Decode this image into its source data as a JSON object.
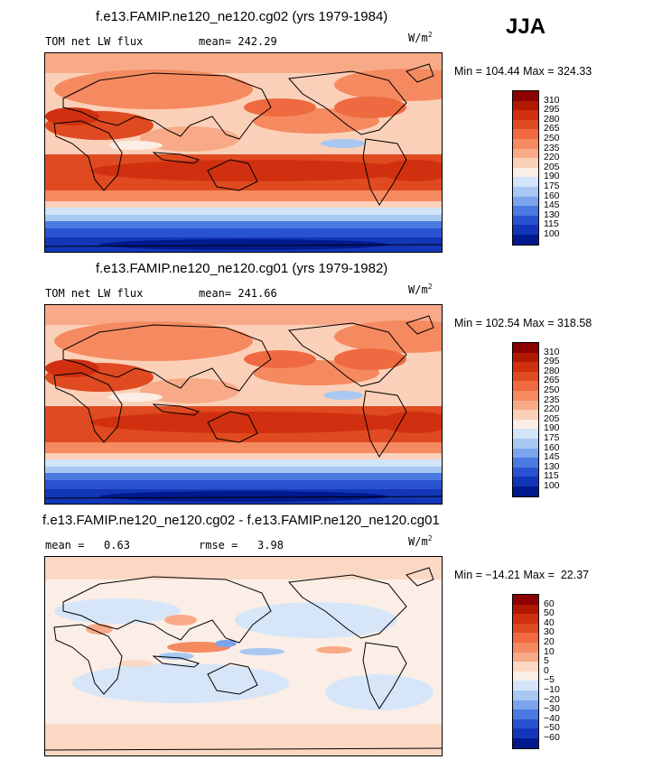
{
  "season": "JJA",
  "panels": [
    {
      "title": "f.e13.FAMIP.ne120_ne120.cg02 (yrs 1979-1984)",
      "variable": "TOM net LW flux",
      "stat1_label": "mean=",
      "stat1_value": "242.29",
      "stat2_label": "",
      "stat2_value": "",
      "units": "W/m",
      "units_sup": "2",
      "min_label": "Min =",
      "min_value": "104.44",
      "max_label": "Max =",
      "max_value": "324.33",
      "colorbar": {
        "labels": [
          "310",
          "295",
          "280",
          "265",
          "250",
          "235",
          "220",
          "205",
          "190",
          "175",
          "160",
          "145",
          "130",
          "115",
          "100"
        ],
        "colors": [
          "#8b0000",
          "#b01800",
          "#d03010",
          "#e04a20",
          "#ef6a40",
          "#f58a60",
          "#f8aa88",
          "#fbd0b8",
          "#fbeee6",
          "#d2e4f8",
          "#a8c8f2",
          "#7ca4ec",
          "#4a7ae0",
          "#2a52d0",
          "#1236b8",
          "#001a8e"
        ]
      }
    },
    {
      "title": "f.e13.FAMIP.ne120_ne120.cg01 (yrs 1979-1982)",
      "variable": "TOM net LW flux",
      "stat1_label": "mean=",
      "stat1_value": "241.66",
      "stat2_label": "",
      "stat2_value": "",
      "units": "W/m",
      "units_sup": "2",
      "min_label": "Min =",
      "min_value": "102.54",
      "max_label": "Max =",
      "max_value": "318.58",
      "colorbar": {
        "labels": [
          "310",
          "295",
          "280",
          "265",
          "250",
          "235",
          "220",
          "205",
          "190",
          "175",
          "160",
          "145",
          "130",
          "115",
          "100"
        ],
        "colors": [
          "#8b0000",
          "#b01800",
          "#d03010",
          "#e04a20",
          "#ef6a40",
          "#f58a60",
          "#f8aa88",
          "#fbd0b8",
          "#fbeee6",
          "#d2e4f8",
          "#a8c8f2",
          "#7ca4ec",
          "#4a7ae0",
          "#2a52d0",
          "#1236b8",
          "#001a8e"
        ]
      }
    },
    {
      "title": "f.e13.FAMIP.ne120_ne120.cg02 - f.e13.FAMIP.ne120_ne120.cg01",
      "variable": "",
      "stat1_label": "mean =",
      "stat1_value": "0.63",
      "stat2_label": "rmse =",
      "stat2_value": "3.98",
      "units": "W/m",
      "units_sup": "2",
      "min_label": "Min =",
      "min_value": "−14.21",
      "max_label": "Max =",
      "max_value": "22.37",
      "colorbar": {
        "labels": [
          "60",
          "50",
          "40",
          "30",
          "20",
          "10",
          "5",
          "0",
          "−5",
          "−10",
          "−20",
          "−30",
          "−40",
          "−50",
          "−60"
        ],
        "colors": [
          "#8b0000",
          "#b01800",
          "#d03010",
          "#e04a20",
          "#ef6a40",
          "#f58a60",
          "#f8aa88",
          "#fbd8c4",
          "#fbeee6",
          "#d6e6f8",
          "#a8c8f2",
          "#7ca4ec",
          "#4a7ae0",
          "#2a52d0",
          "#1236b8",
          "#001a8e"
        ]
      }
    }
  ]
}
